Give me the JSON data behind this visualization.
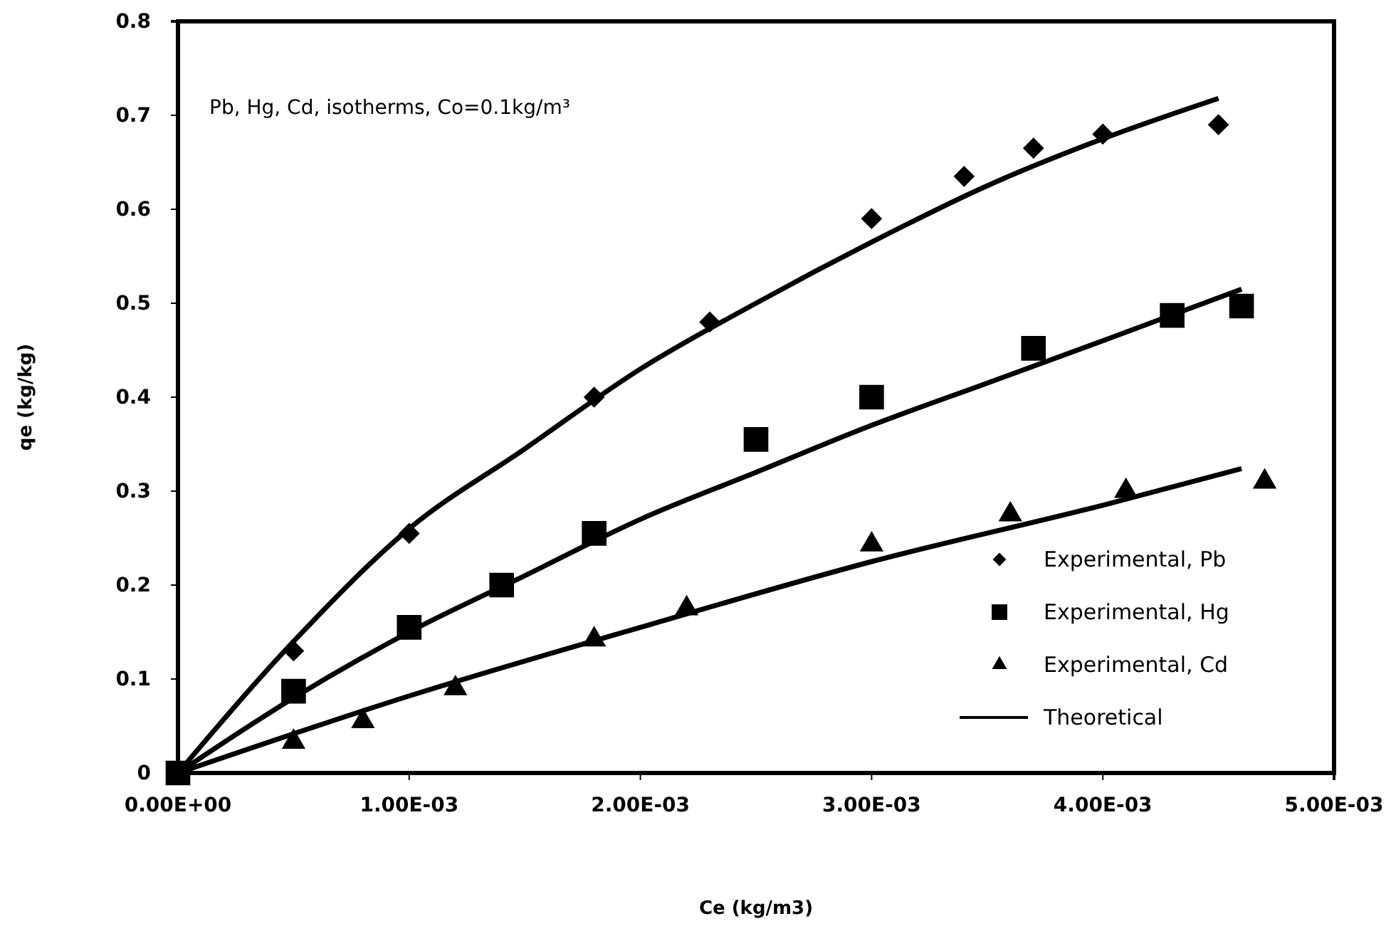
{
  "chart_data": {
    "type": "scatter",
    "xlabel": "Ce (kg/m3)",
    "ylabel": "qe (kg/kg)",
    "annotations": [
      "Pb, Hg, Cd, isotherms, Co=0.1kg/m³"
    ],
    "xlim": [
      0,
      0.005
    ],
    "xticks": [
      {
        "value": 0,
        "label": "0.00E+00"
      },
      {
        "value": 0.001,
        "label": "1.00E-03"
      },
      {
        "value": 0.002,
        "label": "2.00E-03"
      },
      {
        "value": 0.003,
        "label": "3.00E-03"
      },
      {
        "value": 0.004,
        "label": "4.00E-03"
      },
      {
        "value": 0.005,
        "label": "5.00E-03"
      }
    ],
    "ylim": [
      0,
      0.8
    ],
    "yticks": [
      0,
      0.1,
      0.2,
      0.3,
      0.4,
      0.5,
      0.6,
      0.7,
      0.8
    ],
    "grid": false,
    "legend": "bottom right",
    "series": [
      {
        "name": "Experimental, Pb",
        "marker": "diamond",
        "color": "#000000",
        "x": [
          0.0005,
          0.001,
          0.0018,
          0.0023,
          0.003,
          0.0034,
          0.0037,
          0.004,
          0.0045
        ],
        "values": [
          0.13,
          0.255,
          0.4,
          0.48,
          0.59,
          0.635,
          0.665,
          0.68,
          0.69
        ]
      },
      {
        "name": "Experimental, Hg",
        "marker": "square",
        "color": "#000000",
        "x": [
          0,
          0.0005,
          0.001,
          0.0014,
          0.0018,
          0.0025,
          0.003,
          0.0037,
          0.0043,
          0.0046
        ],
        "values": [
          0,
          0.087,
          0.155,
          0.2,
          0.255,
          0.355,
          0.4,
          0.452,
          0.487,
          0.497
        ]
      },
      {
        "name": "Experimental, Cd",
        "marker": "triangle",
        "color": "#000000",
        "x": [
          0.0005,
          0.0008,
          0.0012,
          0.0018,
          0.0022,
          0.003,
          0.0036,
          0.0041,
          0.0047
        ],
        "values": [
          0.033,
          0.055,
          0.09,
          0.142,
          0.175,
          0.243,
          0.275,
          0.3,
          0.31
        ]
      },
      {
        "name": "Theoretical",
        "type": "line",
        "color": "#000000",
        "x": [
          0,
          0.0005,
          0.001,
          0.0015,
          0.002,
          0.0025,
          0.003,
          0.0035,
          0.004,
          0.0045
        ],
        "values": [
          0,
          0.14,
          0.26,
          0.345,
          0.43,
          0.5,
          0.565,
          0.625,
          0.675,
          0.718
        ]
      },
      {
        "type": "line",
        "color": "#000000",
        "x": [
          0,
          0.0005,
          0.001,
          0.0015,
          0.002,
          0.0025,
          0.003,
          0.0035,
          0.004,
          0.0046
        ],
        "values": [
          0,
          0.08,
          0.15,
          0.21,
          0.27,
          0.32,
          0.37,
          0.415,
          0.46,
          0.515
        ]
      },
      {
        "type": "line",
        "color": "#000000",
        "x": [
          0,
          0.001,
          0.002,
          0.003,
          0.004,
          0.0046
        ],
        "values": [
          0,
          0.082,
          0.155,
          0.225,
          0.285,
          0.324
        ]
      }
    ]
  }
}
